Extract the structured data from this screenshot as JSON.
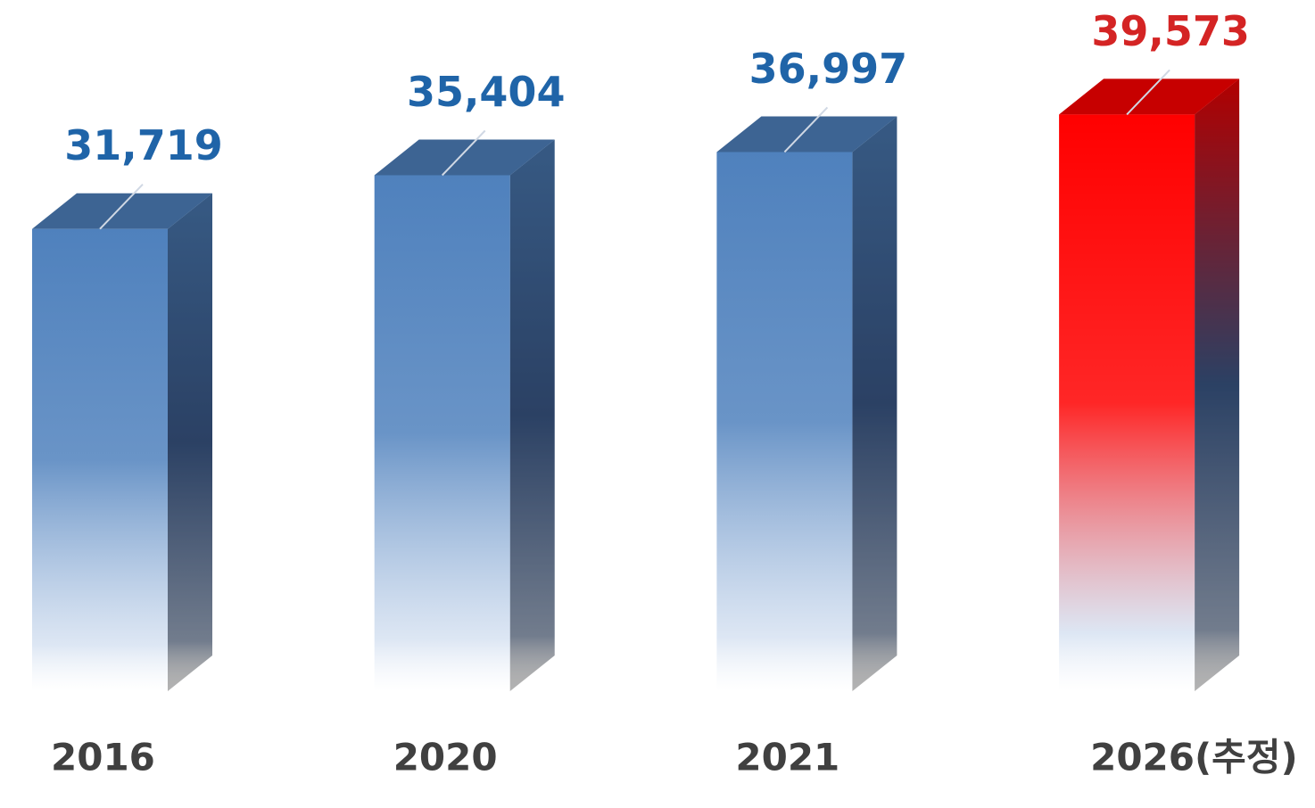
{
  "chart_data": {
    "type": "bar3d",
    "categories": [
      "2016",
      "2020",
      "2021",
      "2026(추정)"
    ],
    "values": [
      31719,
      35404,
      36997,
      39573
    ],
    "value_labels": [
      "31,719",
      "35,404",
      "36,997",
      "39,573"
    ],
    "colors": [
      "#4f81bd",
      "#4f81bd",
      "#4f81bd",
      "#ff0000"
    ],
    "label_colors": [
      "#1f64a8",
      "#1f64a8",
      "#1f64a8",
      "#d42424"
    ]
  }
}
